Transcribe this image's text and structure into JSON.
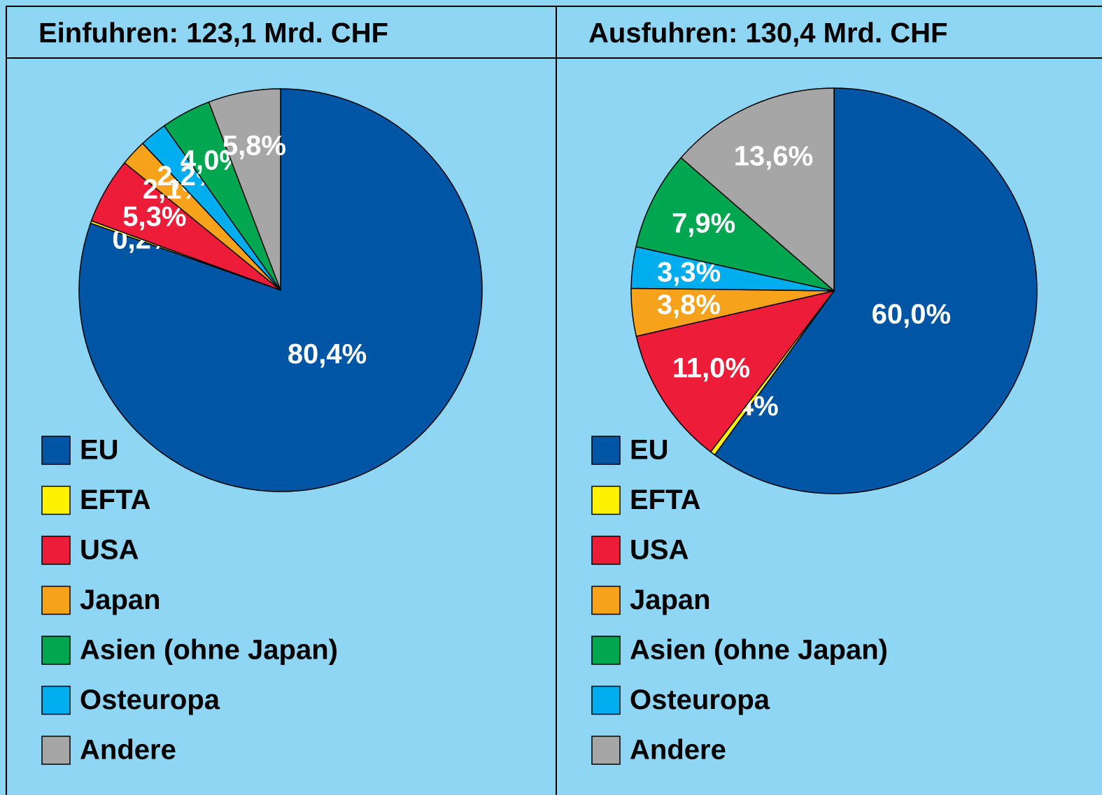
{
  "chart_data": [
    {
      "type": "pie",
      "title": "Einfuhren: 123,1 Mrd. CHF",
      "categories": [
        "EU",
        "EFTA",
        "USA",
        "Japan",
        "Asien (ohne Japan)",
        "Osteuropa",
        "Andere"
      ],
      "values": [
        80.4,
        0.2,
        5.3,
        2.1,
        4.0,
        2.2,
        5.8
      ],
      "value_labels": [
        "80,4%",
        "0,2%",
        "5,3%",
        "2,1%",
        "4,0%",
        "2,2%",
        "5,8%"
      ],
      "colors": [
        "#0055a5",
        "#fff200",
        "#ed1c39",
        "#f7a21b",
        "#00a650",
        "#00aeef",
        "#a6a6a6"
      ]
    },
    {
      "type": "pie",
      "title": "Ausfuhren: 130,4 Mrd. CHF",
      "categories": [
        "EU",
        "EFTA",
        "USA",
        "Japan",
        "Asien (ohne Japan)",
        "Osteuropa",
        "Andere"
      ],
      "values": [
        60.0,
        0.4,
        11.0,
        3.8,
        7.9,
        3.3,
        13.6
      ],
      "value_labels": [
        "60,0%",
        "0,4%",
        "11,0%",
        "3,8%",
        "7,9%",
        "3,3%",
        "13,6%"
      ],
      "colors": [
        "#0055a5",
        "#fff200",
        "#ed1c39",
        "#f7a21b",
        "#00a650",
        "#00aeef",
        "#a6a6a6"
      ]
    }
  ]
}
